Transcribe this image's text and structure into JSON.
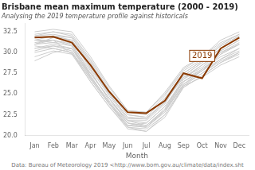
{
  "chart_data": {
    "type": "line",
    "title": "Brisbane mean maximum temperature (2000 - 2019)",
    "subtitle": "Analysing the 2019 temperature profile against historicals",
    "caption": "Data: Bureau of Meteorology 2019 <http://www.bom.gov.au/climate/data/index.sht",
    "x_label": "Month",
    "categories": [
      "Jan",
      "Feb",
      "Mar",
      "Apr",
      "May",
      "Jun",
      "Jul",
      "Aug",
      "Sep",
      "Oct",
      "Nov",
      "Dec"
    ],
    "ylim": [
      20.0,
      33.5
    ],
    "yticks": [
      {
        "value": 20.0,
        "label": "20.0"
      },
      22.5,
      {
        "value": 25.0,
        "label": "25.0"
      },
      27.5,
      {
        "value": 30.0,
        "label": "30.0"
      },
      32.5
    ],
    "grid": false,
    "annotations": [
      {
        "text": "2019",
        "x": "Oct",
        "y": 29.6,
        "color": "#8B3A00"
      }
    ],
    "series": [
      {
        "color": "#CCCCCC",
        "values": [
          31.5,
          31.5,
          29.8,
          27.5,
          24.5,
          21.5,
          21.0,
          23.0,
          26.5,
          28.0,
          29.5,
          30.5
        ]
      },
      {
        "color": "#CCCCCC",
        "values": [
          30.5,
          31.0,
          30.5,
          27.0,
          24.0,
          21.2,
          21.5,
          23.5,
          26.8,
          28.5,
          30.0,
          31.2
        ]
      },
      {
        "color": "#CCCCCC",
        "values": [
          31.0,
          31.8,
          31.5,
          28.0,
          24.8,
          22.0,
          22.0,
          24.0,
          27.0,
          28.2,
          30.2,
          31.5
        ]
      },
      {
        "color": "#CCCCCC",
        "values": [
          32.0,
          32.2,
          31.8,
          28.8,
          25.2,
          22.5,
          22.2,
          24.5,
          27.2,
          28.8,
          30.5,
          31.8
        ]
      },
      {
        "color": "#CCCCCC",
        "values": [
          31.8,
          32.0,
          31.0,
          27.8,
          24.2,
          21.8,
          21.8,
          23.8,
          27.5,
          29.0,
          30.8,
          32.0
        ]
      },
      {
        "color": "#CCCCCC",
        "values": [
          30.8,
          30.5,
          30.0,
          26.5,
          23.5,
          21.0,
          20.5,
          22.5,
          26.0,
          27.5,
          29.0,
          30.0
        ]
      },
      {
        "color": "#CCCCCC",
        "values": [
          31.2,
          31.5,
          30.8,
          27.2,
          24.0,
          21.5,
          21.2,
          23.2,
          26.8,
          28.0,
          30.0,
          31.0
        ]
      },
      {
        "color": "#CCCCCC",
        "values": [
          32.2,
          32.5,
          32.0,
          29.0,
          25.5,
          22.8,
          22.5,
          24.8,
          27.8,
          29.2,
          31.0,
          32.2
        ]
      },
      {
        "color": "#CCCCCC",
        "values": [
          31.5,
          31.2,
          31.5,
          28.2,
          25.0,
          22.2,
          22.0,
          24.2,
          27.0,
          28.5,
          30.2,
          31.5
        ]
      },
      {
        "color": "#CCCCCC",
        "values": [
          30.2,
          30.8,
          30.2,
          26.8,
          23.8,
          21.2,
          21.0,
          22.8,
          26.2,
          27.8,
          29.2,
          30.2
        ]
      },
      {
        "color": "#CCCCCC",
        "values": [
          31.0,
          31.5,
          31.0,
          27.5,
          24.5,
          21.8,
          21.5,
          23.5,
          26.5,
          27.8,
          29.8,
          31.0
        ]
      },
      {
        "color": "#CCCCCC",
        "values": [
          29.5,
          30.2,
          29.8,
          26.5,
          23.5,
          20.8,
          20.5,
          22.2,
          25.8,
          27.2,
          28.8,
          29.8
        ]
      },
      {
        "color": "#CCCCCC",
        "values": [
          31.8,
          32.0,
          31.5,
          28.5,
          25.0,
          22.2,
          22.0,
          24.0,
          27.2,
          28.8,
          30.5,
          31.8
        ]
      },
      {
        "color": "#CCCCCC",
        "values": [
          32.5,
          32.8,
          32.5,
          29.5,
          26.0,
          23.0,
          22.8,
          25.2,
          28.2,
          29.5,
          31.5,
          32.5
        ]
      },
      {
        "color": "#CCCCCC",
        "values": [
          31.0,
          31.2,
          30.8,
          27.2,
          24.0,
          21.5,
          21.2,
          23.2,
          26.5,
          27.8,
          29.8,
          31.0
        ]
      },
      {
        "color": "#CCCCCC",
        "values": [
          30.5,
          30.8,
          30.5,
          27.0,
          24.0,
          21.2,
          21.0,
          23.0,
          26.2,
          27.5,
          29.2,
          30.5
        ]
      },
      {
        "color": "#CCCCCC",
        "values": [
          31.5,
          32.0,
          31.8,
          28.5,
          25.2,
          22.5,
          22.2,
          24.5,
          27.5,
          29.0,
          30.8,
          32.0
        ]
      },
      {
        "color": "#CCCCCC",
        "values": [
          32.0,
          32.5,
          32.2,
          29.2,
          25.8,
          23.0,
          22.8,
          25.0,
          28.0,
          29.5,
          31.2,
          32.2
        ]
      },
      {
        "color": "#CCCCCC",
        "values": [
          30.0,
          30.5,
          30.0,
          26.8,
          23.8,
          21.0,
          20.8,
          22.5,
          25.8,
          27.2,
          28.8,
          30.0
        ]
      },
      {
        "color": "#CCCCCC",
        "values": [
          29.0,
          30.0,
          30.5,
          27.5,
          24.5,
          21.8,
          21.2,
          23.0,
          26.0,
          27.0,
          28.5,
          29.5
        ]
      },
      {
        "color": "#8B3A00",
        "values": [
          31.8,
          31.9,
          31.2,
          28.5,
          25.3,
          22.8,
          22.7,
          24.2,
          27.5,
          26.9,
          30.5,
          31.8
        ]
      }
    ]
  }
}
